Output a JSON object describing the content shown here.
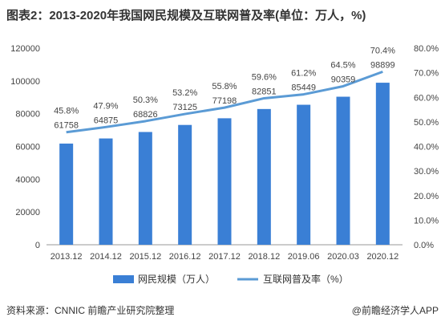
{
  "title": "图表2：2013-2020年我国网民规模及互联网普及率(单位：万人，%)",
  "source": "资料来源：CNNIC 前瞻产业研究院整理",
  "brand": "@前瞻经济学人APP",
  "colors": {
    "bar": "#3a7fd5",
    "line": "#5b9bd5",
    "axis": "#999999"
  },
  "chart_data": {
    "type": "bar+line",
    "categories": [
      "2013.12",
      "2014.12",
      "2015.12",
      "2016.12",
      "2017.12",
      "2018.12",
      "2019.06",
      "2020.03",
      "2020.12"
    ],
    "series": [
      {
        "name": "网民规模（万人）",
        "type": "bar",
        "axis": "left",
        "values": [
          61758,
          64875,
          68826,
          73125,
          77198,
          82851,
          85449,
          90359,
          98899
        ]
      },
      {
        "name": "互联网普及率（%）",
        "type": "line",
        "axis": "right",
        "values": [
          45.8,
          47.9,
          50.3,
          53.2,
          55.8,
          59.6,
          61.2,
          64.5,
          70.4
        ]
      }
    ],
    "y_left": {
      "min": 0,
      "max": 120000,
      "ticks": [
        0,
        20000,
        40000,
        60000,
        80000,
        100000,
        120000
      ]
    },
    "y_right": {
      "min": 0,
      "max": 80,
      "ticks": [
        "0.0%",
        "10.0%",
        "20.0%",
        "30.0%",
        "40.0%",
        "50.0%",
        "60.0%",
        "70.0%",
        "80.0%"
      ]
    },
    "legend_position": "bottom",
    "grid": false
  }
}
